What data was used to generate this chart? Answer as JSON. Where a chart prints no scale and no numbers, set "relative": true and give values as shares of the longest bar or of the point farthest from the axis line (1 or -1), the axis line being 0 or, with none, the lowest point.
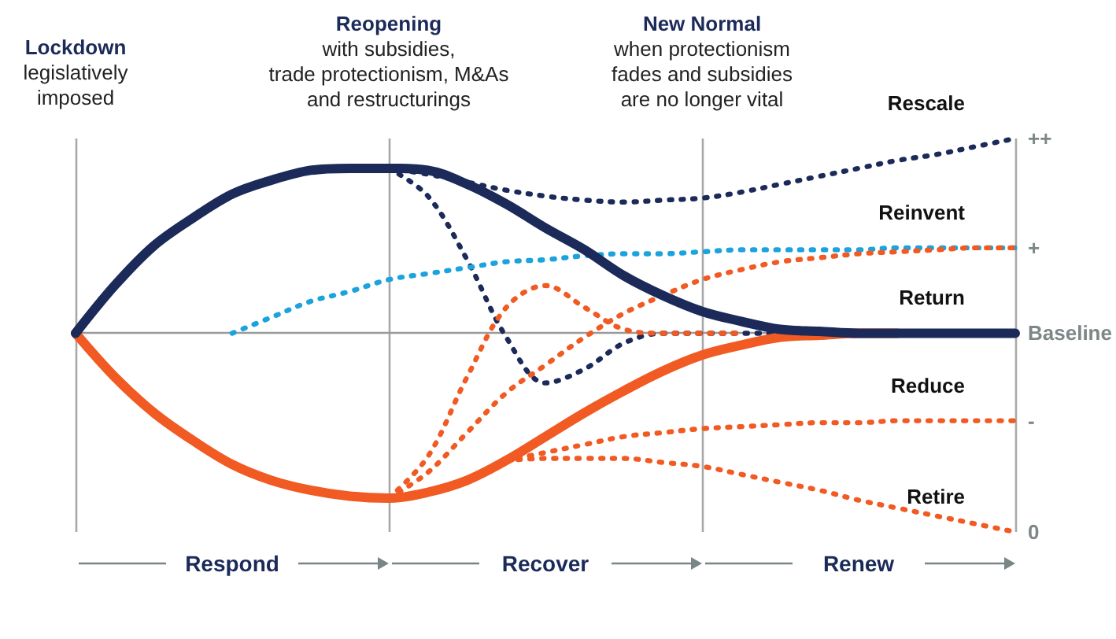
{
  "chart_data": {
    "type": "line",
    "relative": true,
    "categories": [
      null,
      null,
      null,
      null,
      null,
      null,
      null,
      null,
      null,
      null,
      null,
      null,
      null,
      null,
      null,
      null,
      null,
      null,
      null,
      null,
      null,
      null,
      null,
      null,
      null
    ],
    "series": [
      {
        "name": "Rescale",
        "color": "#1b2a59",
        "line_style": "dotted",
        "values": [
          null,
          null,
          null,
          null,
          null,
          null,
          null,
          null,
          0.83,
          0.8,
          0.76,
          0.72,
          0.69,
          0.67,
          0.66,
          0.67,
          0.68,
          0.71,
          0.75,
          0.79,
          0.83,
          0.87,
          0.9,
          0.94,
          0.98
        ]
      },
      {
        "color": "#1b2a59",
        "line_style": "dotted",
        "values": [
          null,
          null,
          null,
          null,
          null,
          null,
          null,
          null,
          0.83,
          0.69,
          0.37,
          -0.02,
          -0.25,
          -0.18,
          -0.05,
          0,
          0,
          0,
          0,
          null,
          null,
          null,
          null,
          null,
          null
        ]
      },
      {
        "name": "Reinvent",
        "color": "#1aa3dd",
        "line_style": "dotted",
        "values": [
          null,
          null,
          null,
          null,
          0,
          0.08,
          0.16,
          0.21,
          0.27,
          0.3,
          0.33,
          0.36,
          0.37,
          0.39,
          0.4,
          0.4,
          0.41,
          0.42,
          0.42,
          0.42,
          0.42,
          0.43,
          0.43,
          0.43,
          0.43
        ]
      },
      {
        "color": "#f15a22",
        "line_style": "dotted",
        "values": [
          null,
          null,
          null,
          null,
          null,
          null,
          null,
          null,
          -0.83,
          -0.7,
          -0.5,
          -0.3,
          -0.16,
          -0.02,
          0.1,
          0.19,
          0.27,
          0.32,
          0.36,
          0.38,
          0.4,
          0.41,
          0.42,
          0.43,
          0.43
        ]
      },
      {
        "color": "#f15a22",
        "line_style": "dotted",
        "values": [
          null,
          null,
          null,
          null,
          null,
          null,
          null,
          null,
          -0.83,
          -0.62,
          -0.22,
          0.13,
          0.24,
          0.13,
          0.02,
          0,
          0,
          0,
          null,
          null,
          null,
          null,
          null,
          null,
          null
        ]
      },
      {
        "name": "Reduce",
        "color": "#f15a22",
        "line_style": "dotted",
        "values": [
          null,
          null,
          null,
          null,
          null,
          null,
          null,
          null,
          null,
          null,
          null,
          -0.64,
          -0.6,
          -0.56,
          -0.52,
          -0.5,
          -0.48,
          -0.47,
          -0.46,
          -0.45,
          -0.45,
          -0.44,
          -0.44,
          -0.44,
          -0.44
        ]
      },
      {
        "name": "Retire",
        "color": "#f15a22",
        "line_style": "dotted",
        "values": [
          null,
          null,
          null,
          null,
          null,
          null,
          null,
          null,
          null,
          null,
          null,
          -0.64,
          -0.63,
          -0.63,
          -0.63,
          -0.65,
          -0.67,
          -0.71,
          -0.75,
          -0.79,
          -0.84,
          -0.88,
          -0.92,
          -0.96,
          -1
        ]
      },
      {
        "color": "#f15a22",
        "line_style": "solid",
        "values": [
          0,
          -0.22,
          -0.4,
          -0.54,
          -0.66,
          -0.74,
          -0.79,
          -0.82,
          -0.83,
          -0.8,
          -0.74,
          -0.64,
          -0.52,
          -0.4,
          -0.29,
          -0.19,
          -0.11,
          -0.06,
          -0.02,
          -0.01,
          0,
          0,
          null,
          null,
          null
        ]
      },
      {
        "name": "Return",
        "color": "#1b2a59",
        "line_style": "solid",
        "values": [
          0,
          0.24,
          0.44,
          0.58,
          0.7,
          0.77,
          0.82,
          0.83,
          0.83,
          0.82,
          0.75,
          0.65,
          0.53,
          0.42,
          0.29,
          0.19,
          0.11,
          0.06,
          0.02,
          0.01,
          0,
          0,
          0,
          0,
          0
        ]
      }
    ],
    "grid": "x",
    "legend": false,
    "marker": "none",
    "annotations": [
      "Lockdown",
      "legislatively\nimposed",
      "Reopening",
      "with subsidies,\ntrade protectionism, M&As\nand restructurings",
      "New Normal",
      "when protectionism\nfades and subsidies\nare no longer vital",
      "Respond",
      "Recover",
      "Renew",
      "++",
      "+",
      "Baseline",
      "-",
      "0"
    ]
  }
}
